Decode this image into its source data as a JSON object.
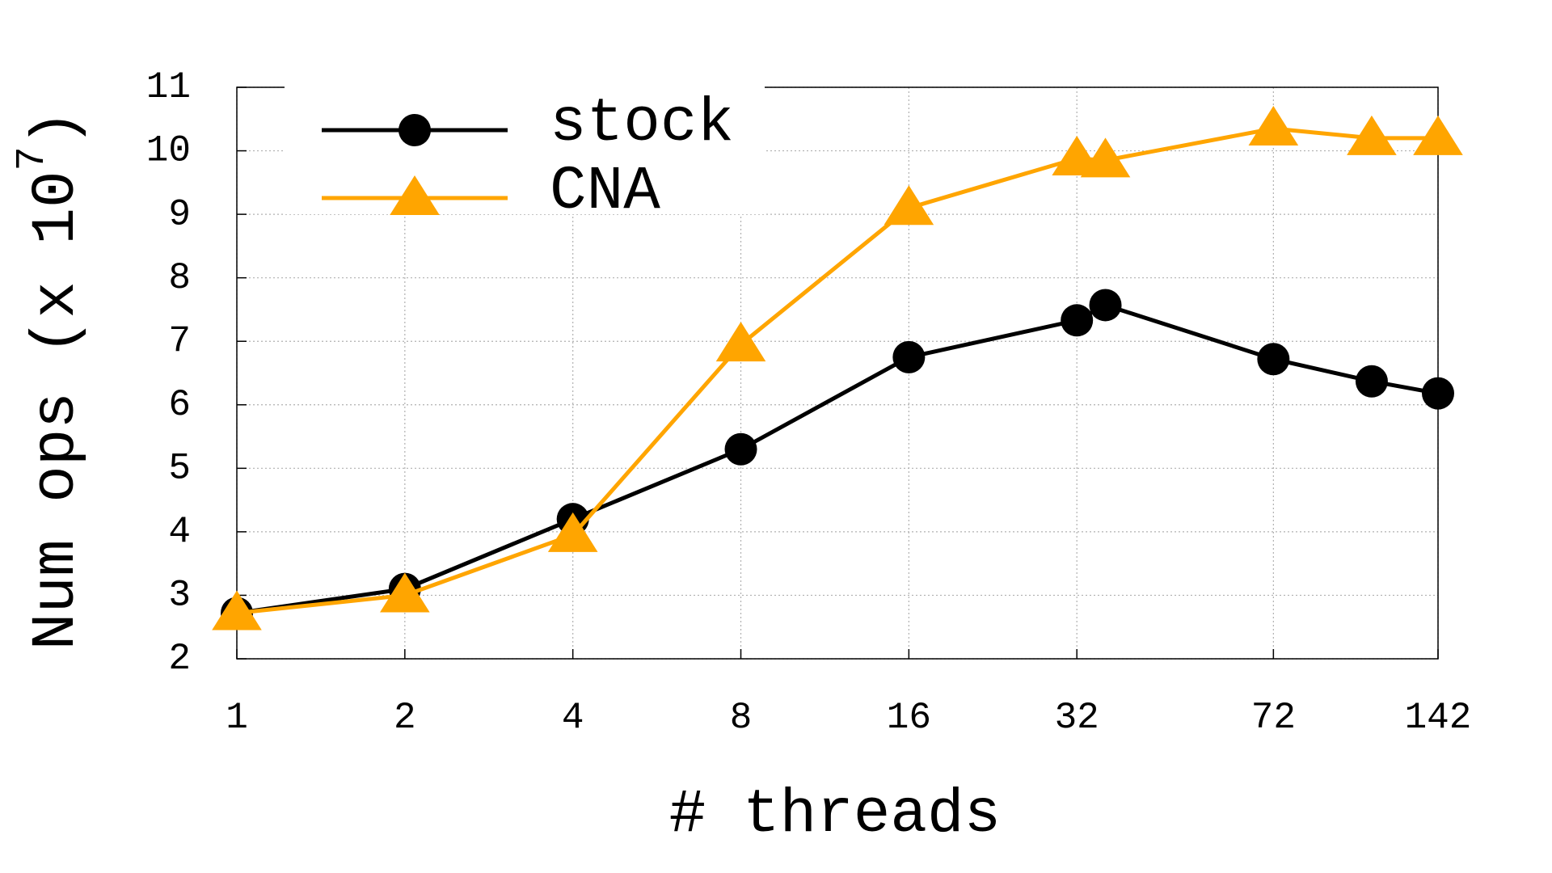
{
  "chart_data": {
    "type": "line",
    "ylabel_parts": [
      "Num ops (x 10",
      "7",
      ")"
    ],
    "xlabel": "# threads",
    "x": [
      1,
      2,
      4,
      8,
      16,
      32,
      36,
      72,
      108,
      142
    ],
    "xscale": "log",
    "xlim": [
      1,
      142
    ],
    "xticks": [
      1,
      2,
      4,
      8,
      16,
      32,
      72,
      142
    ],
    "ylim": [
      2,
      11
    ],
    "yticks": [
      2,
      3,
      4,
      5,
      6,
      7,
      8,
      9,
      10,
      11
    ],
    "grid": true,
    "legend": "upper left",
    "series": [
      {
        "name": "stock",
        "color": "#000000",
        "marker": "circle",
        "values": [
          2.72,
          3.1,
          4.2,
          5.3,
          6.75,
          7.33,
          7.57,
          6.72,
          6.37,
          6.18
        ]
      },
      {
        "name": "CNA",
        "color": "#ffa500",
        "marker": "triangle",
        "values": [
          2.72,
          3.0,
          3.95,
          6.95,
          9.1,
          9.88,
          9.85,
          10.35,
          10.2,
          10.2
        ]
      }
    ]
  }
}
